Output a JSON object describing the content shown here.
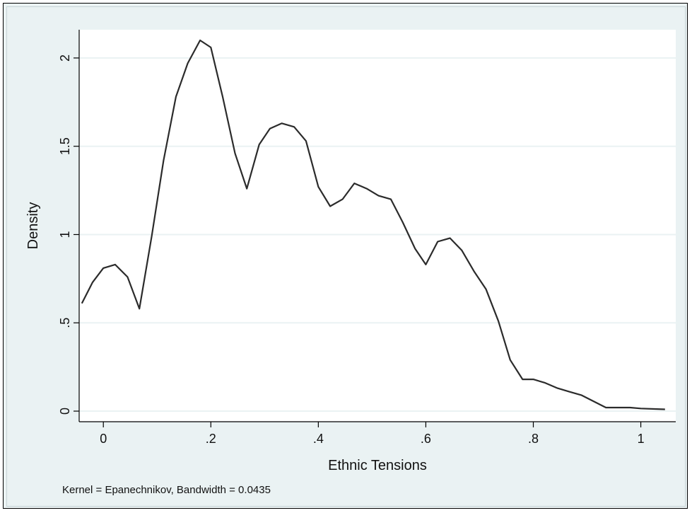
{
  "chart_data": {
    "type": "line",
    "title": "",
    "xlabel": "Ethnic Tensions",
    "ylabel": "Density",
    "note": "Kernel = Epanechnikov, Bandwidth = 0.0435",
    "xlim": [
      -0.045,
      1.065
    ],
    "ylim": [
      -0.06,
      2.16
    ],
    "x_ticks": [
      {
        "value": 0,
        "label": "0"
      },
      {
        "value": 0.2,
        "label": ".2"
      },
      {
        "value": 0.4,
        "label": ".4"
      },
      {
        "value": 0.6,
        "label": ".6"
      },
      {
        "value": 0.8,
        "label": ".8"
      },
      {
        "value": 1,
        "label": "1"
      }
    ],
    "y_ticks": [
      {
        "value": 0,
        "label": "0"
      },
      {
        "value": 0.5,
        "label": ".5"
      },
      {
        "value": 1,
        "label": "1"
      },
      {
        "value": 1.5,
        "label": "1.5"
      },
      {
        "value": 2,
        "label": "2"
      }
    ],
    "grid": "horizontal",
    "colors": {
      "background": "#eaf2f3",
      "plot_background": "#ffffff",
      "line": "#2b2b2b",
      "grid": "#eaf2f3"
    },
    "series": [
      {
        "x": [
          -0.04,
          -0.02,
          0.0,
          0.022,
          0.045,
          0.067,
          0.09,
          0.112,
          0.135,
          0.157,
          0.18,
          0.2,
          0.222,
          0.245,
          0.267,
          0.29,
          0.31,
          0.332,
          0.355,
          0.377,
          0.4,
          0.422,
          0.445,
          0.467,
          0.49,
          0.512,
          0.535,
          0.557,
          0.58,
          0.6,
          0.622,
          0.645,
          0.667,
          0.69,
          0.712,
          0.735,
          0.757,
          0.78,
          0.8,
          0.822,
          0.845,
          0.867,
          0.89,
          0.935,
          0.98,
          1.0,
          1.045
        ],
        "y": [
          0.61,
          0.73,
          0.81,
          0.83,
          0.76,
          0.58,
          0.99,
          1.42,
          1.78,
          1.97,
          2.1,
          2.06,
          1.78,
          1.46,
          1.26,
          1.51,
          1.6,
          1.63,
          1.61,
          1.53,
          1.27,
          1.16,
          1.2,
          1.29,
          1.26,
          1.22,
          1.2,
          1.07,
          0.92,
          0.83,
          0.96,
          0.98,
          0.91,
          0.79,
          0.69,
          0.51,
          0.29,
          0.18,
          0.18,
          0.16,
          0.13,
          0.11,
          0.09,
          0.02,
          0.02,
          0.015,
          0.01
        ]
      }
    ]
  }
}
